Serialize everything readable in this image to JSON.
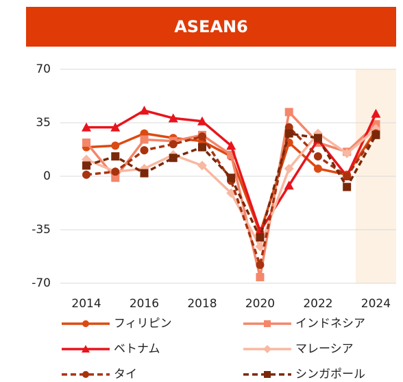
{
  "chart_data": {
    "type": "line",
    "title": "ASEAN6",
    "x": [
      2014,
      2015,
      2016,
      2017,
      2018,
      2019,
      2020,
      2021,
      2022,
      2023,
      2024
    ],
    "xlim": [
      2013.1,
      2024.7
    ],
    "xticks": [
      2014,
      2016,
      2018,
      2020,
      2022,
      2024
    ],
    "ylim": [
      -70,
      70
    ],
    "yticks": [
      -70,
      -35,
      0,
      35,
      70
    ],
    "grid": true,
    "highlight_x": [
      2023.3,
      2024.7
    ],
    "highlight_color": "#fdf1e3",
    "title_color": "#e03a06",
    "series": [
      {
        "name": "フィリピン",
        "color": "#dc4a12",
        "marker": "circle",
        "dash": false,
        "values": [
          19,
          20,
          28,
          25,
          23,
          13,
          -37,
          22,
          5,
          1,
          30
        ]
      },
      {
        "name": "インドネシア",
        "color": "#f4866a",
        "marker": "square",
        "dash": false,
        "values": [
          22,
          -1,
          24,
          23,
          27,
          14,
          -66,
          42,
          22,
          16,
          34
        ]
      },
      {
        "name": "ベトナム",
        "color": "#e8141c",
        "marker": "triangle",
        "dash": false,
        "values": [
          32,
          32,
          43,
          38,
          36,
          20,
          -36,
          -6,
          24,
          0,
          41
        ]
      },
      {
        "name": "マレーシア",
        "color": "#f8b8a2",
        "marker": "diamond",
        "dash": false,
        "values": [
          11,
          3,
          5,
          14,
          7,
          -11,
          -46,
          5,
          28,
          15,
          31
        ]
      },
      {
        "name": "タイ",
        "color": "#a8330f",
        "marker": "circle",
        "dash": true,
        "values": [
          1,
          3,
          17,
          21,
          26,
          -3,
          -58,
          32,
          13,
          0,
          28
        ]
      },
      {
        "name": "シンガポール",
        "color": "#7a280a",
        "marker": "square",
        "dash": true,
        "values": [
          7,
          13,
          2,
          12,
          19,
          -1,
          -40,
          28,
          25,
          -7,
          27
        ]
      }
    ]
  }
}
